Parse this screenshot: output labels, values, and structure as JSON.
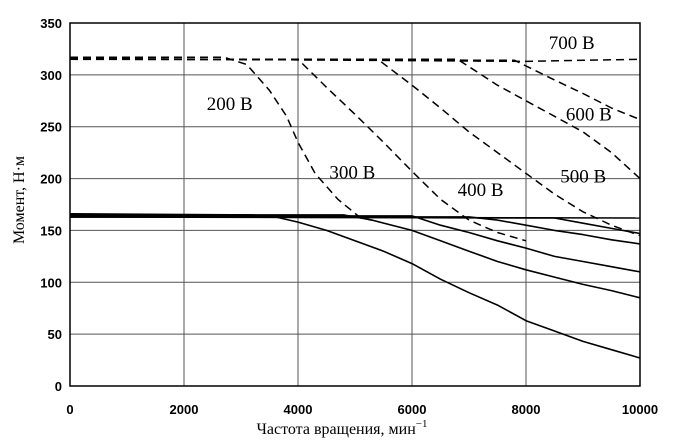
{
  "chart_data": {
    "type": "line",
    "xlabel": "Частота вращения, мин",
    "xlabel_sup": "−1",
    "ylabel": "Момент, Н·м",
    "xlim": [
      0,
      10000
    ],
    "ylim": [
      0,
      350
    ],
    "x_ticks": [
      "0",
      "2000",
      "4000",
      "6000",
      "8000",
      "10000"
    ],
    "y_ticks": [
      "0",
      "50",
      "100",
      "150",
      "200",
      "250",
      "300",
      "350"
    ],
    "grid": true,
    "series": [
      {
        "name": "200 В",
        "style": "dashed",
        "x": [
          0,
          2700,
          3100,
          3500,
          3800,
          4000,
          4300,
          4700,
          5100,
          5300
        ],
        "y": [
          317,
          317,
          310,
          285,
          260,
          235,
          205,
          180,
          162,
          160
        ]
      },
      {
        "name": "300 В",
        "style": "dashed",
        "x": [
          0,
          4000,
          4500,
          5000,
          5500,
          6000,
          6500,
          7000,
          7500,
          8000
        ],
        "y": [
          315,
          315,
          288,
          262,
          235,
          207,
          180,
          160,
          148,
          140
        ]
      },
      {
        "name": "400 В",
        "style": "dashed",
        "x": [
          0,
          5400,
          6000,
          6500,
          7000,
          7500,
          8000,
          8500,
          9000,
          9500,
          10000
        ],
        "y": [
          315,
          315,
          290,
          268,
          245,
          225,
          205,
          185,
          168,
          155,
          145
        ]
      },
      {
        "name": "500 В",
        "style": "dashed",
        "x": [
          0,
          6800,
          7500,
          8000,
          8500,
          9000,
          9500,
          10000
        ],
        "y": [
          315,
          315,
          290,
          275,
          260,
          245,
          225,
          200
        ]
      },
      {
        "name": "600 В",
        "style": "dashed",
        "x": [
          0,
          7800,
          8500,
          9000,
          9500,
          10000
        ],
        "y": [
          315,
          314,
          295,
          282,
          268,
          257
        ]
      },
      {
        "name": "700 В",
        "style": "dashed",
        "x": [
          0,
          8000,
          9000,
          10000
        ],
        "y": [
          316,
          313,
          314,
          315
        ]
      },
      {
        "name": "",
        "style": "solid",
        "x": [
          0,
          3200,
          3600,
          4000,
          4500,
          5000,
          5500,
          6000,
          6500,
          7000,
          7500,
          8000,
          8500,
          9000,
          9500,
          10000
        ],
        "y": [
          166,
          165,
          163,
          158,
          150,
          140,
          130,
          118,
          103,
          90,
          78,
          63,
          53,
          43,
          35,
          27
        ]
      },
      {
        "name": "",
        "style": "solid",
        "x": [
          0,
          4800,
          5300,
          6000,
          6500,
          7000,
          7500,
          8000,
          8500,
          9000,
          9500,
          10000
        ],
        "y": [
          165,
          165,
          160,
          150,
          140,
          130,
          120,
          112,
          105,
          98,
          92,
          85
        ]
      },
      {
        "name": "",
        "style": "solid",
        "x": [
          0,
          6000,
          6500,
          7000,
          7500,
          8000,
          8500,
          9000,
          9500,
          10000
        ],
        "y": [
          164,
          164,
          155,
          148,
          140,
          133,
          125,
          120,
          115,
          110
        ]
      },
      {
        "name": "",
        "style": "solid",
        "x": [
          0,
          7000,
          7500,
          8000,
          8500,
          9000,
          9500,
          10000
        ],
        "y": [
          163,
          163,
          160,
          155,
          150,
          146,
          141,
          137
        ]
      },
      {
        "name": "",
        "style": "solid",
        "x": [
          0,
          8500,
          9000,
          9500,
          10000
        ],
        "y": [
          163,
          162,
          157,
          152,
          147
        ]
      },
      {
        "name": "",
        "style": "solid",
        "x": [
          0,
          10000
        ],
        "y": [
          163,
          162
        ]
      }
    ],
    "annotations": [
      {
        "text": "700 В",
        "x": 8400,
        "y": 325
      },
      {
        "text": "600 В",
        "x": 8700,
        "y": 256
      },
      {
        "text": "200 В",
        "x": 2400,
        "y": 266
      },
      {
        "text": "300 В",
        "x": 4550,
        "y": 200
      },
      {
        "text": "400 В",
        "x": 6800,
        "y": 183
      },
      {
        "text": "500 В",
        "x": 8600,
        "y": 196
      }
    ]
  }
}
